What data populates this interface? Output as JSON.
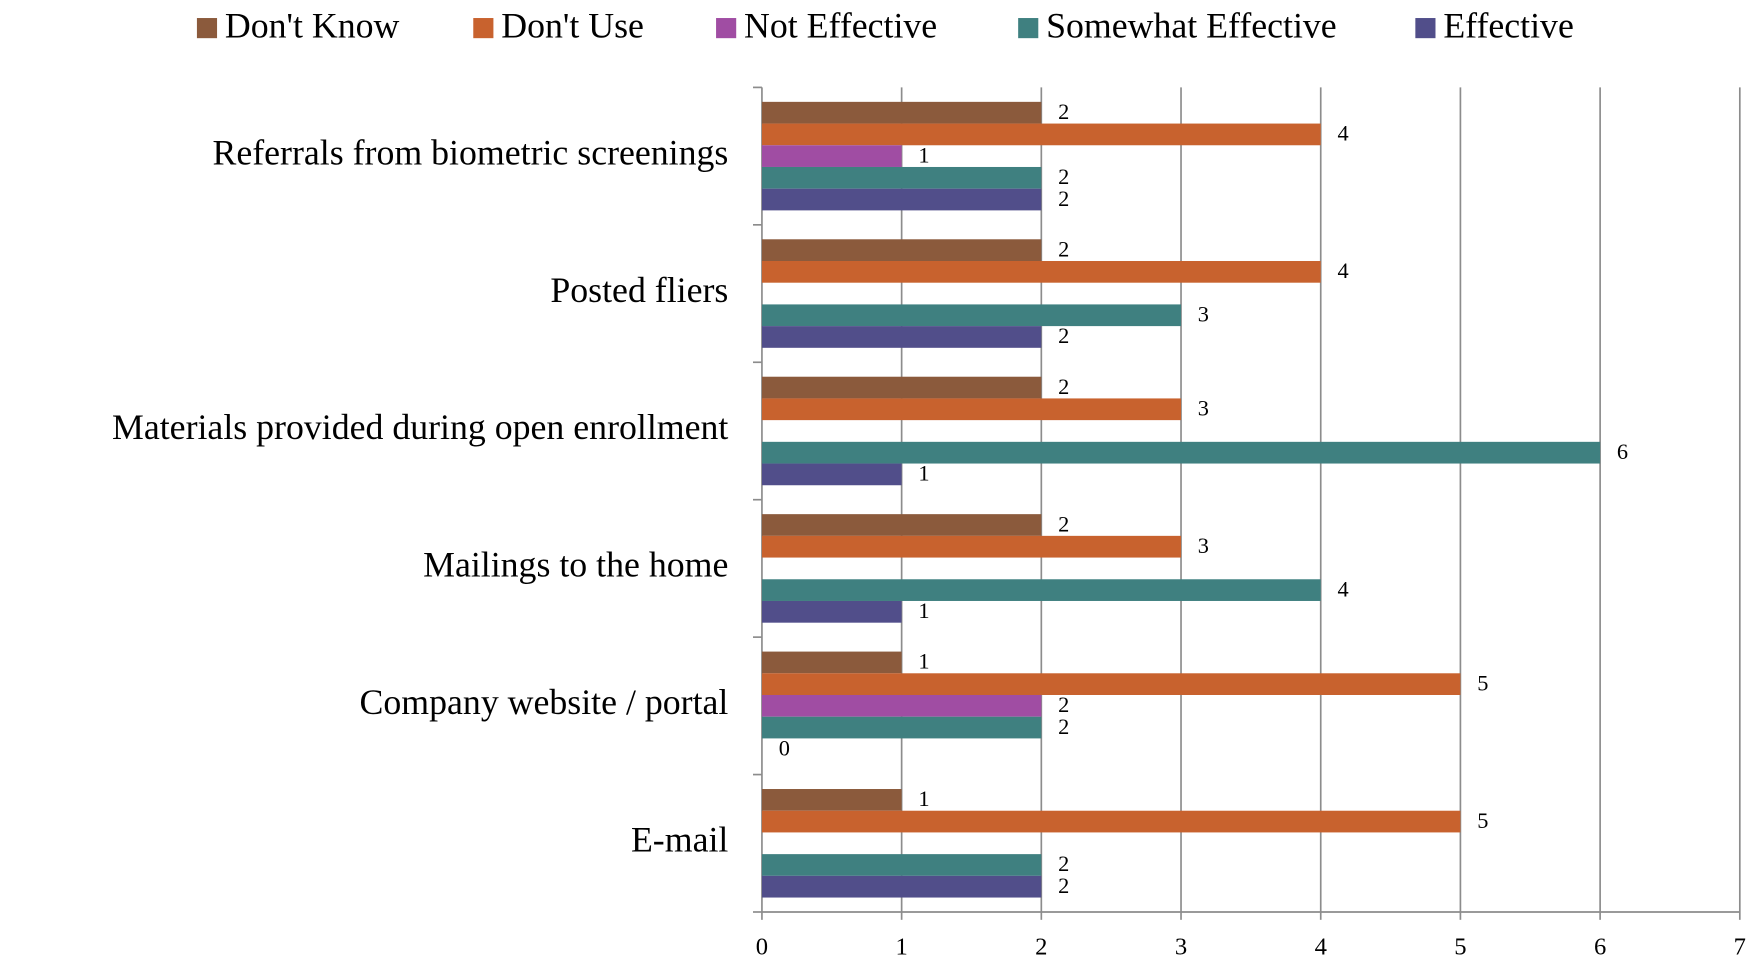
{
  "chart_data": {
    "type": "hbar",
    "categories": [
      "Referrals from biometric screenings",
      "Posted fliers",
      "Materials provided during open enrollment",
      "Mailings to the home",
      "Company website / portal",
      "E-mail"
    ],
    "series": [
      {
        "name": "Don't Know",
        "color": "#8b5a3c",
        "values": [
          2,
          2,
          2,
          2,
          1,
          1
        ]
      },
      {
        "name": "Don't Use",
        "color": "#c8622e",
        "values": [
          4,
          4,
          3,
          3,
          5,
          5
        ]
      },
      {
        "name": "Not Effective",
        "color": "#a04da3",
        "values": [
          1,
          null,
          null,
          null,
          2,
          null
        ]
      },
      {
        "name": "Somewhat Effective",
        "color": "#3f8080",
        "values": [
          2,
          3,
          6,
          4,
          2,
          2
        ]
      },
      {
        "name": "Effective",
        "color": "#514e8a",
        "values": [
          2,
          2,
          1,
          1,
          0,
          2
        ]
      }
    ],
    "xlim": [
      0,
      7
    ],
    "xticks": [
      0,
      1,
      2,
      3,
      4,
      5,
      6,
      7
    ],
    "grid": true,
    "legend": "top"
  }
}
